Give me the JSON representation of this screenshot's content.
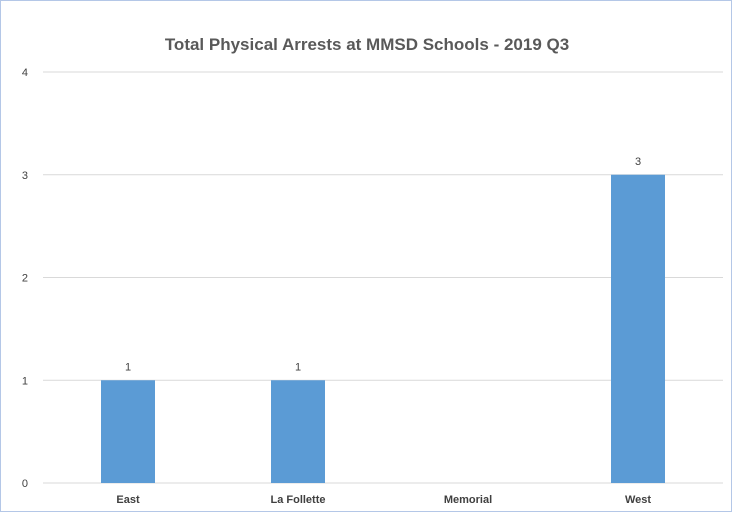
{
  "chart_data": {
    "type": "bar",
    "title": "Total Physical Arrests at MMSD Schools - 2019 Q3",
    "categories": [
      "East",
      "La Follette",
      "Memorial",
      "West"
    ],
    "values": [
      1,
      1,
      0,
      3
    ],
    "data_labels": [
      "1",
      "1",
      "",
      "3"
    ],
    "yticks": [
      "0",
      "1",
      "2",
      "3",
      "4"
    ],
    "ylim": [
      0,
      4
    ],
    "xlabel": "",
    "ylabel": "",
    "grid": true,
    "legend": "none",
    "bar_color": "#5b9bd5",
    "gridline_color": "#d9d9d9"
  }
}
